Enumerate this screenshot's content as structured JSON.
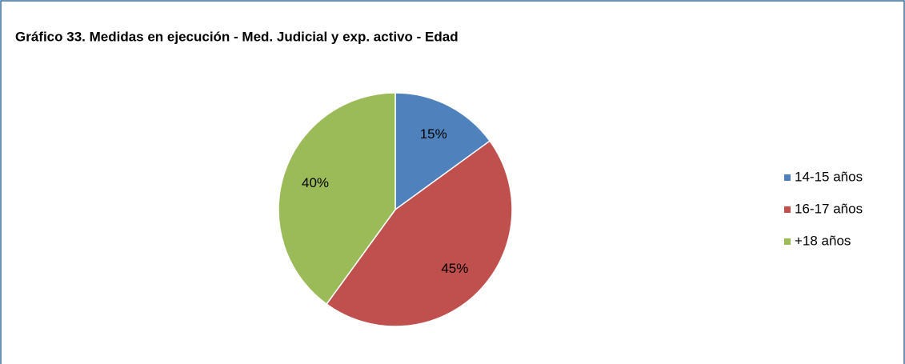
{
  "chart_data": {
    "type": "pie",
    "title": "Gráfico 33. Medidas en ejecución - Med. Judicial y exp. activo - Edad",
    "categories": [
      "14-15 años",
      "16-17 años",
      "+18 años"
    ],
    "values": [
      15,
      45,
      40
    ],
    "value_labels": [
      "15%",
      "45%",
      "40%"
    ],
    "colors": [
      "#4f81bd",
      "#c0504d",
      "#9bbb59"
    ],
    "legend": "right"
  }
}
